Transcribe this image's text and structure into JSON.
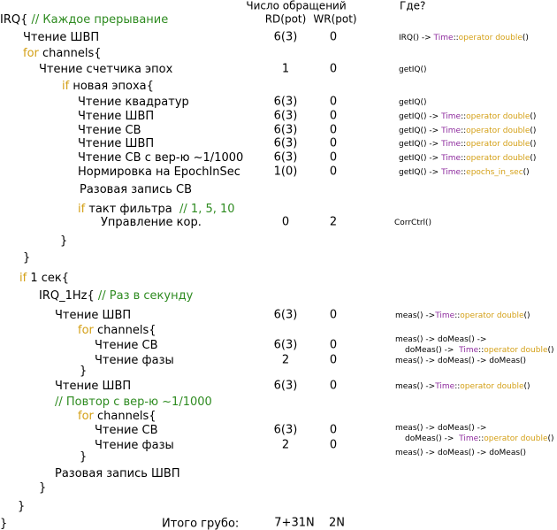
{
  "header": {
    "count": "Число обращений",
    "rd": "RD(pot)",
    "wr": "WR(pot)",
    "where": "Где?"
  },
  "rows": [
    {
      "code": [
        {
          "text": "IRQ{ "
        },
        {
          "text": "// Каждое прерывание",
          "color": "#2e8b20"
        }
      ]
    },
    {
      "code": [
        {
          "text": "Чтение ШВП"
        }
      ],
      "rd": "6(3)",
      "wr": "0",
      "where": [
        [
          {
            "text": "IRQ() -> "
          },
          {
            "text": "Time",
            "color": "#8e2c9e"
          },
          {
            "text": "::"
          },
          {
            "text": "operator double",
            "color": "#d4a017"
          },
          {
            "text": "()"
          }
        ]
      ]
    },
    {
      "code": [
        {
          "text": "for",
          "color": "#d4a017"
        },
        {
          "text": " channels{"
        }
      ]
    },
    {
      "code": [
        {
          "text": "Чтение счетчика эпох"
        }
      ],
      "rd": "1",
      "wr": "0",
      "where": [
        [
          {
            "text": "getIQ()"
          }
        ]
      ]
    },
    {
      "code": [
        {
          "text": "if",
          "color": "#d4a017"
        },
        {
          "text": " новая эпоха{"
        }
      ]
    },
    {
      "code": [
        {
          "text": "Чтение квадратур"
        }
      ],
      "rd": "6(3)",
      "wr": "0",
      "where": [
        [
          {
            "text": "getIQ()"
          }
        ]
      ]
    },
    {
      "code": [
        {
          "text": "Чтение ШВП"
        }
      ],
      "rd": "6(3)",
      "wr": "0",
      "where": [
        [
          {
            "text": "getIQ() -> "
          },
          {
            "text": "Time",
            "color": "#8e2c9e"
          },
          {
            "text": "::"
          },
          {
            "text": "operator double",
            "color": "#d4a017"
          },
          {
            "text": "()"
          }
        ]
      ]
    },
    {
      "code": [
        {
          "text": "Чтение СВ"
        }
      ],
      "rd": "6(3)",
      "wr": "0",
      "where": [
        [
          {
            "text": "getIQ() -> "
          },
          {
            "text": "Time",
            "color": "#8e2c9e"
          },
          {
            "text": "::"
          },
          {
            "text": "operator double",
            "color": "#d4a017"
          },
          {
            "text": "()"
          }
        ]
      ]
    },
    {
      "code": [
        {
          "text": "Чтение ШВП"
        }
      ],
      "rd": "6(3)",
      "wr": "0",
      "where": [
        [
          {
            "text": "getIQ() -> "
          },
          {
            "text": "Time",
            "color": "#8e2c9e"
          },
          {
            "text": "::"
          },
          {
            "text": "operator double",
            "color": "#d4a017"
          },
          {
            "text": "()"
          }
        ]
      ]
    },
    {
      "code": [
        {
          "text": "Чтение СВ с вер-ю ~1/1000"
        }
      ],
      "rd": "6(3)",
      "wr": "0",
      "where": [
        [
          {
            "text": "getIQ() -> "
          },
          {
            "text": "Time",
            "color": "#8e2c9e"
          },
          {
            "text": "::"
          },
          {
            "text": "operator double",
            "color": "#d4a017"
          },
          {
            "text": "()"
          }
        ]
      ]
    },
    {
      "code": [
        {
          "text": "Нормировка на EpochInSec"
        }
      ],
      "rd": "1(0)",
      "wr": "0",
      "where": [
        [
          {
            "text": "getIQ() -> "
          },
          {
            "text": "Time",
            "color": "#8e2c9e"
          },
          {
            "text": "::"
          },
          {
            "text": "epochs_in_sec",
            "color": "#d4a017"
          },
          {
            "text": "()"
          }
        ]
      ]
    },
    {
      "code": [
        {
          "text": "Разовая запись СВ"
        }
      ]
    },
    {
      "code": [
        {
          "text": "if",
          "color": "#d4a017"
        },
        {
          "text": " такт фильтра  "
        },
        {
          "text": "// 1, 5, 10",
          "color": "#2e8b20"
        }
      ]
    },
    {
      "code": [
        {
          "text": "Управление кор."
        }
      ],
      "rd": "0",
      "wr": "2",
      "where": [
        [
          {
            "text": "CorrCtrl()"
          }
        ]
      ]
    },
    {
      "code": [
        {
          "text": "}"
        }
      ]
    },
    {
      "code": [
        {
          "text": "}"
        }
      ]
    },
    {
      "code": [
        {
          "text": "if",
          "color": "#d4a017"
        },
        {
          "text": " 1 сек{"
        }
      ]
    },
    {
      "code": [
        {
          "text": "IRQ_1Hz{ "
        },
        {
          "text": "// Раз в секунду",
          "color": "#2e8b20"
        }
      ]
    },
    {
      "code": [
        {
          "text": "Чтение ШВП"
        }
      ],
      "rd": "6(3)",
      "wr": "0",
      "where": [
        [
          {
            "text": "meas() ->"
          },
          {
            "text": "Time",
            "color": "#8e2c9e"
          },
          {
            "text": "::"
          },
          {
            "text": "operator double",
            "color": "#d4a017"
          },
          {
            "text": "()"
          }
        ]
      ]
    },
    {
      "code": [
        {
          "text": "for",
          "color": "#d4a017"
        },
        {
          "text": " channels{"
        }
      ]
    },
    {
      "code": [
        {
          "text": "Чтение СВ"
        }
      ],
      "rd": "6(3)",
      "wr": "0",
      "where": [
        [
          {
            "text": "meas() -> doMeas() ->"
          }
        ],
        [
          {
            "text": "doMeas() ->  "
          },
          {
            "text": "Time",
            "color": "#8e2c9e"
          },
          {
            "text": "::"
          },
          {
            "text": "operator double",
            "color": "#d4a017"
          },
          {
            "text": "()"
          }
        ]
      ]
    },
    {
      "code": [
        {
          "text": "Чтение фазы"
        }
      ],
      "rd": "2",
      "wr": "0",
      "where": [
        [
          {
            "text": "meas() -> doMeas() -> doMeas()"
          }
        ]
      ]
    },
    {
      "code": [
        {
          "text": "}"
        }
      ]
    },
    {
      "code": [
        {
          "text": "Чтение ШВП"
        }
      ],
      "rd": "6(3)",
      "wr": "0",
      "where": [
        [
          {
            "text": "meas() ->"
          },
          {
            "text": "Time",
            "color": "#8e2c9e"
          },
          {
            "text": "::"
          },
          {
            "text": "operator double",
            "color": "#d4a017"
          },
          {
            "text": "()"
          }
        ]
      ]
    },
    {
      "code": [
        {
          "text": "// Повтор с вер-ю ~1/1000",
          "color": "#2e8b20"
        }
      ]
    },
    {
      "code": [
        {
          "text": "for",
          "color": "#d4a017"
        },
        {
          "text": " channels{"
        }
      ]
    },
    {
      "code": [
        {
          "text": "Чтение СВ"
        }
      ],
      "rd": "6(3)",
      "wr": "0",
      "where": [
        [
          {
            "text": "meas() -> doMeas() ->"
          }
        ],
        [
          {
            "text": "doMeas() ->  "
          },
          {
            "text": "Time",
            "color": "#8e2c9e"
          },
          {
            "text": "::"
          },
          {
            "text": "operator double",
            "color": "#d4a017"
          },
          {
            "text": "()"
          }
        ]
      ]
    },
    {
      "code": [
        {
          "text": "Чтение фазы"
        }
      ],
      "rd": "2",
      "wr": "0",
      "where": [
        [
          {
            "text": "meas() -> doMeas() -> doMeas()"
          }
        ]
      ]
    },
    {
      "code": [
        {
          "text": "}"
        }
      ]
    },
    {
      "code": [
        {
          "text": "Разовая запись ШВП"
        }
      ]
    },
    {
      "code": [
        {
          "text": "}"
        }
      ]
    },
    {
      "code": [
        {
          "text": "}"
        }
      ]
    }
  ],
  "total": {
    "brace": "}",
    "label": "Итого грубо:",
    "rd": "7+31N",
    "wr": "2N"
  }
}
